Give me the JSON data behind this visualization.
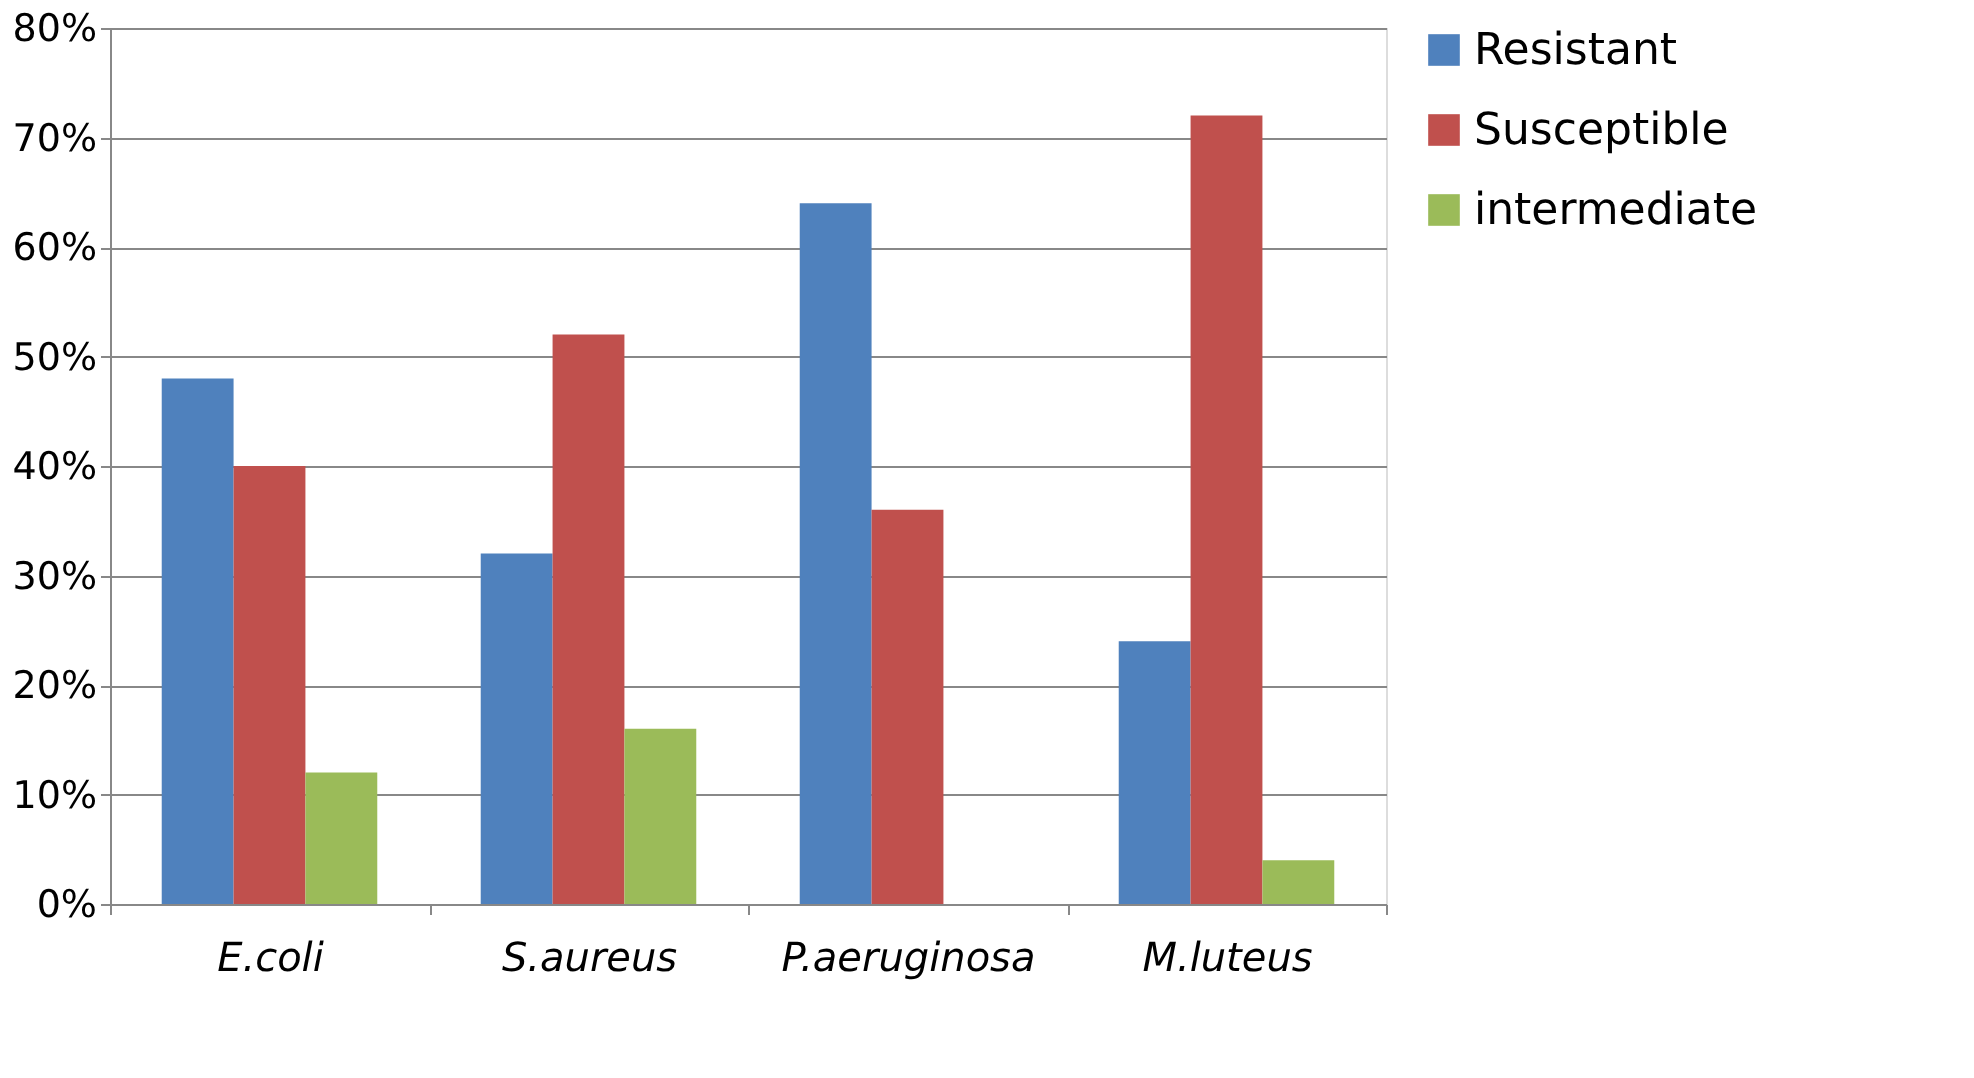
{
  "chart_data": {
    "type": "bar",
    "categories": [
      "E.coli",
      "S.aureus",
      "P.aeruginosa",
      "M.luteus"
    ],
    "series": [
      {
        "name": "Resistant",
        "color": "#4f81bd",
        "values": [
          48,
          32,
          64,
          24
        ]
      },
      {
        "name": "Susceptible",
        "color": "#c0504d",
        "values": [
          40,
          52,
          36,
          72
        ]
      },
      {
        "name": "intermediate",
        "color": "#9bbb59",
        "values": [
          12,
          16,
          0,
          4
        ]
      }
    ],
    "ylim": [
      0,
      80
    ],
    "yticks": [
      {
        "value": 0,
        "label": "0%"
      },
      {
        "value": 10,
        "label": "10%"
      },
      {
        "value": 20,
        "label": "20%"
      },
      {
        "value": 30,
        "label": "30%"
      },
      {
        "value": 40,
        "label": "40%"
      },
      {
        "value": 50,
        "label": "50%"
      },
      {
        "value": 60,
        "label": "60%"
      },
      {
        "value": 70,
        "label": "70%"
      },
      {
        "value": 80,
        "label": "80%"
      }
    ],
    "grid": "y",
    "legend": "right"
  }
}
